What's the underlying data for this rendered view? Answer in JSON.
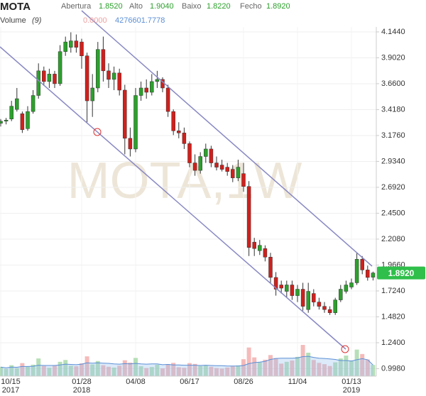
{
  "header": {
    "symbol": "MOTA",
    "open_label": "Abertura",
    "open": "1.8520",
    "high_label": "Alto",
    "high": "1.9040",
    "low_label": "Baixo",
    "low": "1.8220",
    "close_label": "Fecho",
    "close": "1.8920",
    "volume_label": "Volume",
    "volume_period": "(9)",
    "volume_value_1": "0.0000",
    "volume_value_2": "4276601.7778"
  },
  "chart_data": {
    "type": "candlestick",
    "watermark": "MOTA,1W",
    "categories": [
      "10/15",
      null,
      null,
      null,
      null,
      null,
      null,
      null,
      null,
      null,
      null,
      null,
      null,
      null,
      null,
      "01/28",
      null,
      null,
      null,
      null,
      null,
      null,
      null,
      null,
      null,
      "04/08",
      null,
      null,
      null,
      null,
      null,
      null,
      null,
      null,
      null,
      "06/17",
      null,
      null,
      null,
      null,
      null,
      null,
      null,
      null,
      null,
      "08/26",
      null,
      null,
      null,
      null,
      null,
      null,
      null,
      null,
      null,
      "11/04",
      null,
      null,
      null,
      null,
      null,
      null,
      null,
      null,
      null,
      "01/13",
      null,
      null,
      null,
      null
    ],
    "category_years": [
      "2017",
      null,
      null,
      null,
      null,
      null,
      null,
      null,
      null,
      null,
      null,
      null,
      null,
      null,
      null,
      "2018",
      null,
      null,
      null,
      null,
      null,
      null,
      null,
      null,
      null,
      null,
      null,
      null,
      null,
      null,
      null,
      null,
      null,
      null,
      null,
      null,
      null,
      null,
      null,
      null,
      null,
      null,
      null,
      null,
      null,
      null,
      null,
      null,
      null,
      null,
      null,
      null,
      null,
      null,
      null,
      null,
      null,
      null,
      null,
      null,
      null,
      null,
      null,
      null,
      null,
      "2019",
      null,
      null,
      null,
      null
    ],
    "open": [
      3.29,
      3.31,
      3.33,
      3.42,
      3.38,
      3.24,
      3.4,
      3.55,
      3.78,
      3.68,
      3.75,
      3.66,
      3.96,
      4.0,
      4.06,
      4.05,
      3.92,
      3.5,
      3.62,
      3.98,
      3.78,
      3.7,
      3.76,
      3.6,
      3.15,
      3.05,
      3.55,
      3.62,
      3.58,
      3.68,
      3.7,
      3.62,
      3.4,
      3.22,
      3.2,
      3.1,
      2.92,
      2.85,
      2.98,
      3.05,
      2.92,
      2.9,
      2.88,
      2.86,
      2.78,
      2.82,
      2.7,
      2.18,
      2.1,
      2.12,
      2.04,
      1.85,
      1.78,
      1.72,
      1.78,
      1.68,
      1.74,
      1.55,
      1.7,
      1.62,
      1.58,
      1.55,
      1.52,
      1.64,
      1.72,
      1.76,
      1.8,
      2.02,
      1.92,
      1.852
    ],
    "high": [
      3.33,
      3.34,
      3.5,
      3.62,
      3.4,
      3.45,
      3.6,
      3.85,
      3.82,
      3.8,
      3.78,
      4.02,
      4.1,
      4.14,
      4.12,
      4.08,
      3.95,
      3.75,
      4.05,
      4.1,
      3.85,
      3.82,
      3.8,
      3.65,
      3.25,
      3.62,
      3.68,
      3.7,
      3.75,
      3.78,
      3.72,
      3.65,
      3.42,
      3.3,
      3.25,
      3.12,
      3.0,
      3.02,
      3.1,
      3.08,
      2.98,
      2.95,
      2.92,
      2.9,
      2.95,
      2.92,
      2.75,
      2.22,
      2.2,
      2.15,
      2.08,
      1.9,
      1.82,
      1.82,
      1.82,
      1.78,
      1.8,
      1.8,
      1.74,
      1.66,
      1.62,
      1.58,
      1.66,
      1.78,
      1.82,
      1.84,
      2.08,
      2.05,
      1.96,
      1.904
    ],
    "low": [
      3.26,
      3.28,
      3.31,
      3.4,
      3.2,
      3.22,
      3.38,
      3.52,
      3.64,
      3.62,
      3.62,
      3.64,
      3.92,
      3.95,
      3.95,
      3.8,
      3.3,
      3.35,
      3.58,
      3.68,
      3.62,
      3.6,
      3.55,
      3.0,
      2.98,
      3.02,
      3.5,
      3.52,
      3.55,
      3.62,
      3.58,
      3.35,
      3.18,
      3.15,
      3.05,
      2.88,
      2.8,
      2.82,
      2.92,
      2.88,
      2.85,
      2.84,
      2.8,
      2.74,
      2.75,
      2.65,
      2.05,
      2.05,
      2.06,
      2.0,
      1.8,
      1.68,
      1.7,
      1.66,
      1.64,
      1.62,
      1.54,
      1.52,
      1.58,
      1.55,
      1.52,
      1.5,
      1.5,
      1.62,
      1.7,
      1.74,
      1.78,
      1.88,
      1.82,
      1.822
    ],
    "close": [
      3.31,
      3.32,
      3.45,
      3.52,
      3.23,
      3.4,
      3.55,
      3.78,
      3.68,
      3.75,
      3.66,
      3.96,
      4.05,
      4.06,
      4.0,
      3.92,
      3.5,
      3.62,
      3.98,
      3.78,
      3.7,
      3.76,
      3.6,
      3.15,
      3.05,
      3.55,
      3.62,
      3.58,
      3.68,
      3.7,
      3.62,
      3.4,
      3.22,
      3.2,
      3.1,
      2.92,
      2.85,
      2.98,
      3.05,
      2.92,
      2.88,
      2.86,
      2.84,
      2.78,
      2.88,
      2.7,
      2.13,
      2.12,
      2.15,
      2.04,
      1.85,
      1.74,
      1.75,
      1.78,
      1.68,
      1.74,
      1.58,
      1.72,
      1.62,
      1.58,
      1.55,
      1.52,
      1.64,
      1.74,
      1.78,
      1.8,
      2.02,
      1.92,
      1.85,
      1.892
    ],
    "volume": [
      3500000,
      2800000,
      4200000,
      3100000,
      5000000,
      3600000,
      4400000,
      6800000,
      3900000,
      3200000,
      4100000,
      5500000,
      6200000,
      4000000,
      3800000,
      4900000,
      7600000,
      4500000,
      5800000,
      4200000,
      3600000,
      3300000,
      4000000,
      6100000,
      5200000,
      7000000,
      3800000,
      3100000,
      3500000,
      4400000,
      3000000,
      4600000,
      5100000,
      3400000,
      3200000,
      5000000,
      4700000,
      3900000,
      4200000,
      3600000,
      3100000,
      2900000,
      3300000,
      3800000,
      4100000,
      6500000,
      11000000,
      7200000,
      5400000,
      6300000,
      8100000,
      6900000,
      4800000,
      5500000,
      6000000,
      7400000,
      12000000,
      9000000,
      6200000,
      5100000,
      4600000,
      3900000,
      5300000,
      6800000,
      7900000,
      6000000,
      10200000,
      8500000,
      6400000,
      4300000
    ],
    "volume_ma": [
      3500000,
      3200000,
      3500000,
      3400000,
      3700000,
      3700000,
      3800000,
      4200000,
      4100000,
      4100000,
      4100000,
      4300000,
      4600000,
      4500000,
      4400000,
      4600000,
      5100000,
      5000000,
      5100000,
      5000000,
      4900000,
      4700000,
      4600000,
      4800000,
      4700000,
      4900000,
      4700000,
      4600000,
      4700000,
      4700000,
      4400000,
      4500000,
      4300000,
      4300000,
      4200000,
      4200000,
      4200000,
      4100000,
      4200000,
      4100000,
      4000000,
      4000000,
      3900000,
      3900000,
      3900000,
      4100000,
      4800000,
      5200000,
      5400000,
      5700000,
      6400000,
      6800000,
      6900000,
      6900000,
      6900000,
      7000000,
      7500000,
      7600000,
      7200000,
      6900000,
      6800000,
      6600000,
      6400000,
      6000000,
      6000000,
      5800000,
      6300000,
      6700000,
      6300000,
      4276601.7778
    ],
    "volume_lim": [
      0,
      15000000
    ],
    "ylim": [
      0.928,
      4.19
    ],
    "yticks": [
      {
        "value": 4.144,
        "label": "4.1440"
      },
      {
        "value": 3.902,
        "label": "3.9020"
      },
      {
        "value": 3.66,
        "label": "3.6600"
      },
      {
        "value": 3.418,
        "label": "3.4180"
      },
      {
        "value": 3.176,
        "label": "3.1760"
      },
      {
        "value": 2.934,
        "label": "2.9340"
      },
      {
        "value": 2.692,
        "label": "2.6920"
      },
      {
        "value": 2.45,
        "label": "2.4500"
      },
      {
        "value": 2.208,
        "label": "2.2080"
      },
      {
        "value": 1.966,
        "label": "1.9660"
      },
      {
        "value": 1.724,
        "label": "1.7240"
      },
      {
        "value": 1.482,
        "label": "1.4820"
      },
      {
        "value": 1.24,
        "label": "1.2400"
      },
      {
        "value": 0.998,
        "label": "0.9980"
      }
    ],
    "up_color": "#2ca02c",
    "down_color": "#d0201c",
    "grid": true
  }
}
